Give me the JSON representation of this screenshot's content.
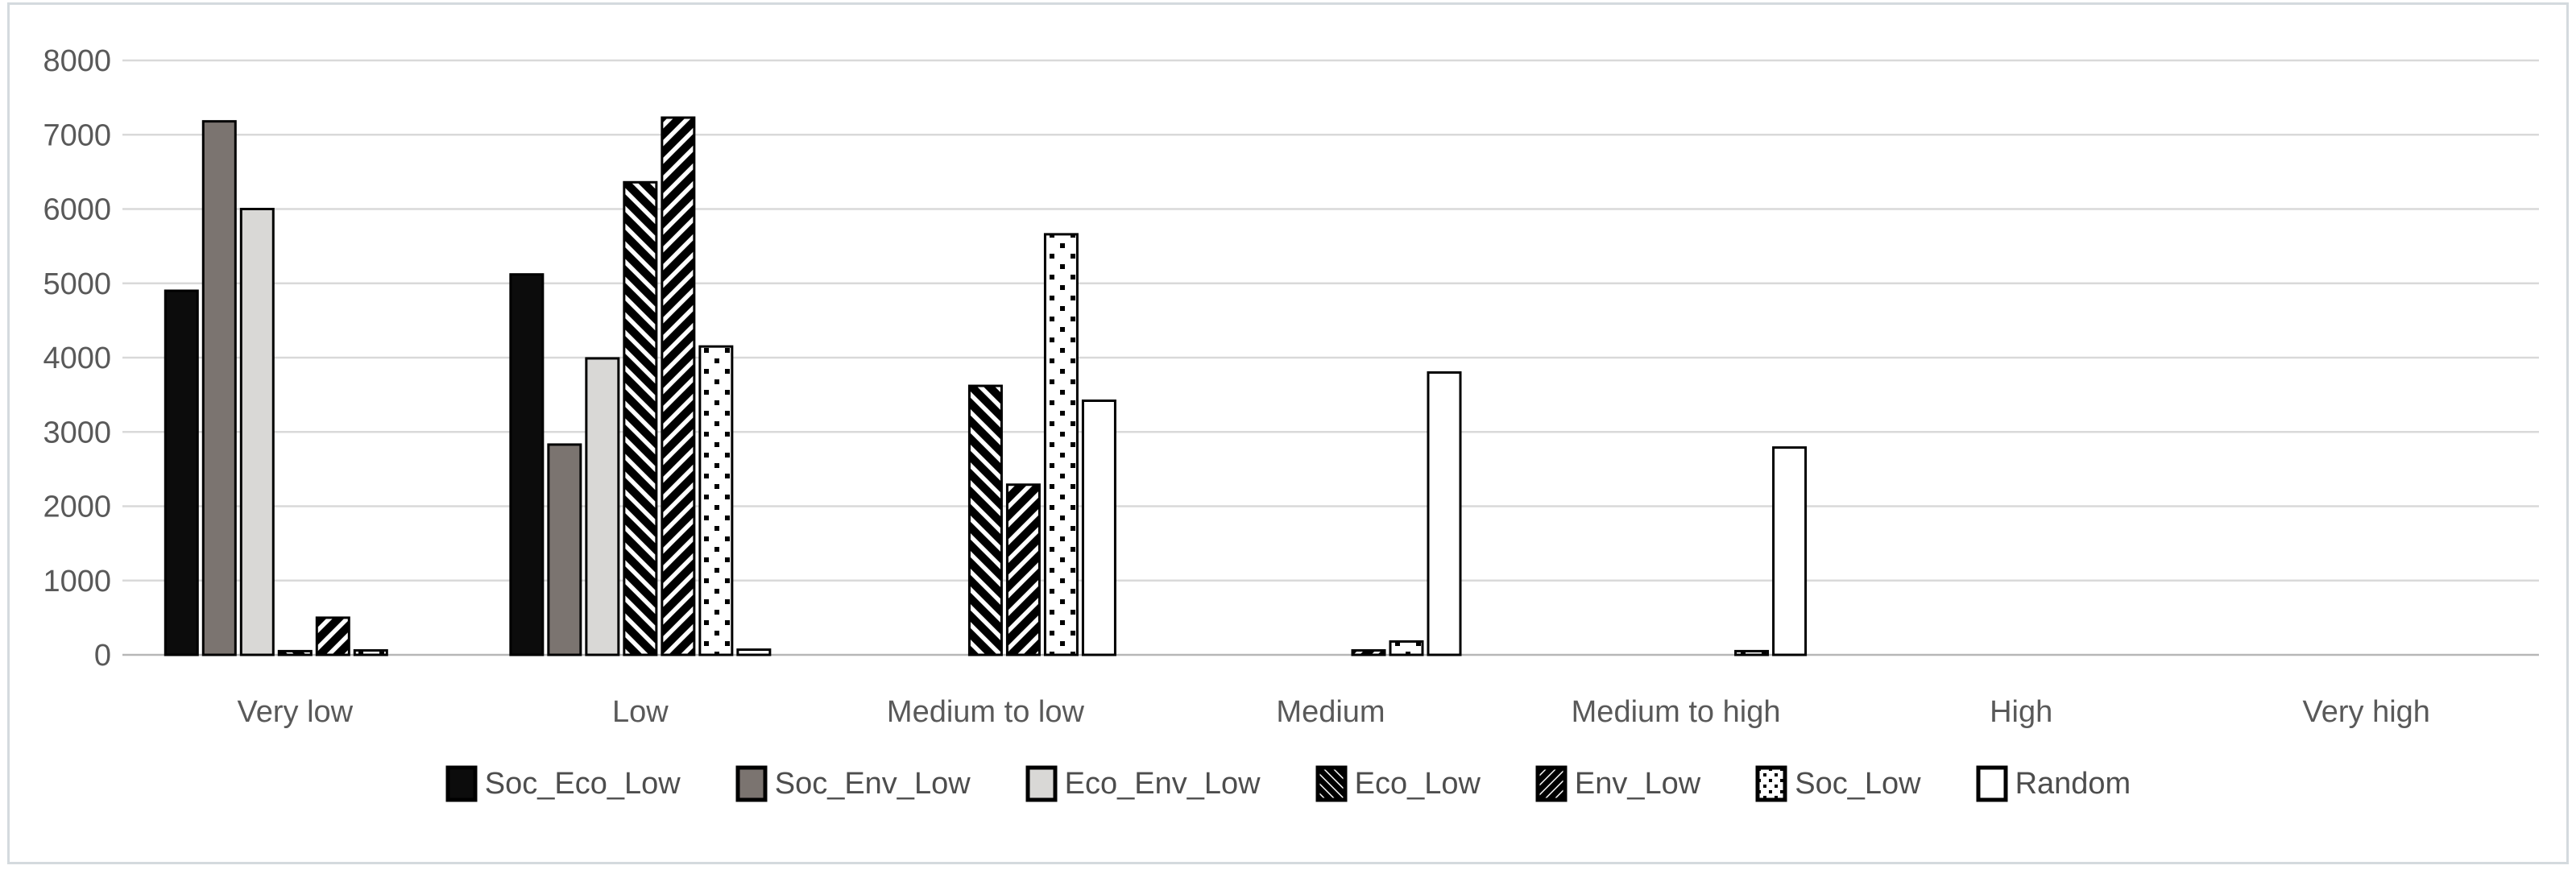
{
  "figure": {
    "title": "",
    "background": "#ffffff"
  },
  "chart_data": {
    "type": "bar",
    "title": "",
    "xlabel": "",
    "ylabel": "",
    "categories": [
      "Very low",
      "Low",
      "Medium to low",
      "Medium",
      "Medium to high",
      "High",
      "Very high"
    ],
    "series": [
      {
        "name": "Soc_Eco_Low",
        "fill": "solid",
        "color": "#0c0c0c",
        "values": [
          4900,
          5120,
          0,
          0,
          0,
          0,
          0
        ]
      },
      {
        "name": "Soc_Env_Low",
        "fill": "solid",
        "color": "#7b7470",
        "values": [
          7180,
          2830,
          0,
          0,
          0,
          0,
          0
        ]
      },
      {
        "name": "Eco_Env_Low",
        "fill": "solid",
        "color": "#d9d8d6",
        "values": [
          6000,
          3990,
          0,
          0,
          0,
          0,
          0
        ]
      },
      {
        "name": "Eco_Low",
        "fill": "pattern-diagonal-down",
        "color": "#000000",
        "values": [
          50,
          6360,
          3620,
          0,
          0,
          0,
          0
        ]
      },
      {
        "name": "Env_Low",
        "fill": "pattern-diagonal-up",
        "color": "#000000",
        "values": [
          500,
          7230,
          2290,
          60,
          0,
          0,
          0
        ]
      },
      {
        "name": "Soc_Low",
        "fill": "pattern-dots",
        "color": "#000000",
        "values": [
          60,
          4150,
          5660,
          180,
          50,
          0,
          0
        ]
      },
      {
        "name": "Random",
        "fill": "white",
        "color": "#ffffff",
        "values": [
          0,
          70,
          3420,
          3800,
          2790,
          0,
          0
        ]
      }
    ],
    "y_axis": {
      "min": 0,
      "max": 8000,
      "step": 1000,
      "tick_labels": [
        "0",
        "1000",
        "2000",
        "3000",
        "4000",
        "5000",
        "6000",
        "7000",
        "8000"
      ]
    },
    "grid": true,
    "legend_position": "bottom",
    "colors": {
      "grid_line": "#d9d9d9",
      "axis_line": "#b7b7b7",
      "tick_text": "#595959",
      "category_text": "#595959",
      "legend_text": "#4d4d4d",
      "bar_outline": "#000000",
      "frame_border": "#d4dade",
      "background": "#ffffff"
    }
  }
}
